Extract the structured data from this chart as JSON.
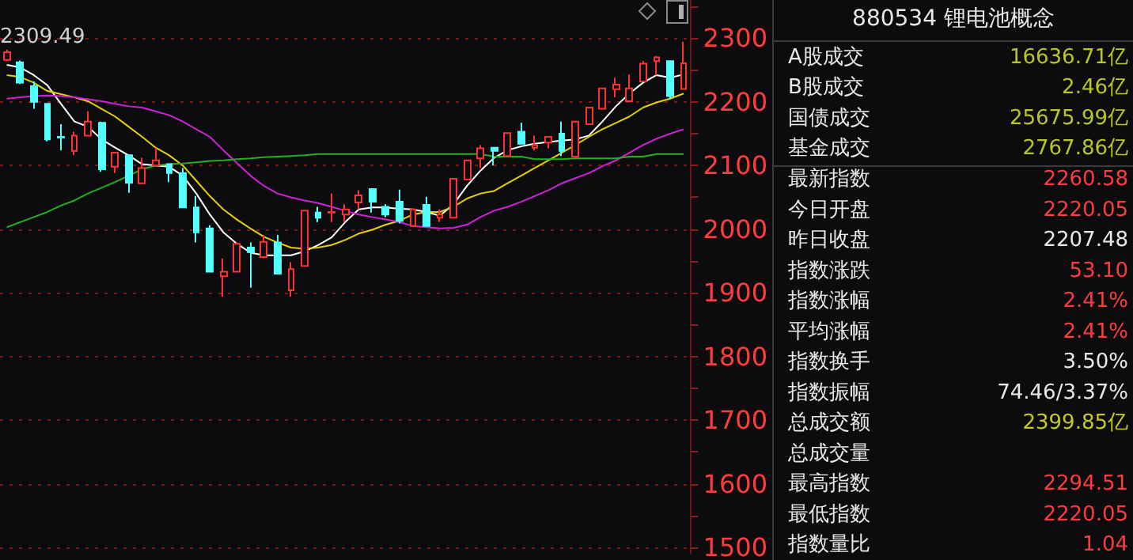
{
  "chart_data": [
    {
      "type": "candlestick",
      "categories": [
        null,
        null,
        null,
        null,
        null,
        null,
        null,
        null,
        null,
        null,
        null,
        null,
        null,
        null,
        null,
        null,
        null,
        null,
        null,
        null,
        null,
        null,
        null,
        null,
        null,
        null,
        null,
        null,
        null,
        null,
        null,
        null,
        null,
        null,
        null,
        null,
        null,
        null,
        null,
        null,
        null,
        null,
        null,
        null,
        null,
        null,
        null,
        null,
        null,
        null,
        null
      ],
      "ohlc": [
        [
          2266,
          2282,
          2264,
          2278
        ],
        [
          2262,
          2265,
          2228,
          2230
        ],
        [
          2225,
          2232,
          2189,
          2200
        ],
        [
          2197,
          2198,
          2138,
          2141
        ],
        [
          2145,
          2165,
          2124,
          2144
        ],
        [
          2123,
          2153,
          2116,
          2147
        ],
        [
          2147,
          2185,
          2147,
          2169
        ],
        [
          2167,
          2169,
          2090,
          2094
        ],
        [
          2098,
          2120,
          2088,
          2120
        ],
        [
          2116,
          2116,
          2057,
          2073
        ],
        [
          2072,
          2112,
          2072,
          2096
        ],
        [
          2100,
          2128,
          2100,
          2108
        ],
        [
          2102,
          2102,
          2074,
          2088
        ],
        [
          2088,
          2096,
          2034,
          2034
        ],
        [
          2034,
          2052,
          1979,
          1995
        ],
        [
          2001,
          2006,
          1932,
          1933
        ],
        [
          1926,
          1954,
          1894,
          1933
        ],
        [
          1933,
          1979,
          1933,
          1977
        ],
        [
          1971,
          1979,
          1908,
          1964
        ],
        [
          1956,
          1991,
          1954,
          1980
        ],
        [
          1979,
          1991,
          1930,
          1930
        ],
        [
          1904,
          1948,
          1894,
          1937
        ],
        [
          1942,
          2029,
          1942,
          2029
        ],
        [
          2026,
          2035,
          2011,
          2018
        ],
        [
          2026,
          2056,
          2011,
          2027
        ],
        [
          2023,
          2039,
          2011,
          2031
        ],
        [
          2042,
          2061,
          2031,
          2053
        ],
        [
          2063,
          2063,
          2026,
          2043
        ],
        [
          2035,
          2039,
          2019,
          2023
        ],
        [
          2043,
          2062,
          2009,
          2013
        ],
        [
          2005,
          2031,
          2005,
          2031
        ],
        [
          2038,
          2051,
          2005,
          2005
        ],
        [
          2018,
          2031,
          2011,
          2023
        ],
        [
          2018,
          2079,
          2018,
          2079
        ],
        [
          2078,
          2108,
          2078,
          2108
        ],
        [
          2111,
          2132,
          2096,
          2127
        ],
        [
          2128,
          2128,
          2100,
          2123
        ],
        [
          2115,
          2151,
          2115,
          2151
        ],
        [
          2153,
          2167,
          2134,
          2134
        ],
        [
          2128,
          2147,
          2124,
          2132
        ],
        [
          2136,
          2145,
          2127,
          2145
        ],
        [
          2150,
          2169,
          2115,
          2123
        ],
        [
          2114,
          2169,
          2114,
          2169
        ],
        [
          2165,
          2191,
          2165,
          2191
        ],
        [
          2189,
          2221,
          2189,
          2221
        ],
        [
          2220,
          2238,
          2207,
          2227
        ],
        [
          2201,
          2243,
          2201,
          2221
        ],
        [
          2232,
          2264,
          2232,
          2260
        ],
        [
          2264,
          2272,
          2242,
          2270
        ],
        [
          2264,
          2264,
          2205,
          2209
        ],
        [
          2220.05,
          2294.51,
          2220.05,
          2260.58
        ]
      ],
      "colors": [
        "#ff3232",
        "#54ffff",
        "#54ffff",
        "#54ffff",
        "#54ffff",
        "#ff3232",
        "#ff3232",
        "#54ffff",
        "#ff3232",
        "#54ffff",
        "#ff3232",
        "#ff3232",
        "#54ffff",
        "#54ffff",
        "#54ffff",
        "#54ffff",
        "#ff3232",
        "#ff3232",
        "#54ffff",
        "#ff3232",
        "#54ffff",
        "#ff3232",
        "#ff3232",
        "#54ffff",
        "#ff3232",
        "#ff3232",
        "#ff3232",
        "#54ffff",
        "#54ffff",
        "#54ffff",
        "#ff3232",
        "#54ffff",
        "#ff3232",
        "#ff3232",
        "#ff3232",
        "#ff3232",
        "#54ffff",
        "#ff3232",
        "#54ffff",
        "#ff3232",
        "#ff3232",
        "#54ffff",
        "#ff3232",
        "#ff3232",
        "#ff3232",
        "#ff3232",
        "#ff3232",
        "#ff3232",
        "#ff3232",
        "#54ffff",
        "#ff3232"
      ],
      "series": [
        {
          "type": "line",
          "color": "#ffffff",
          "values": [
            2258,
            2254,
            2242,
            2226,
            2197,
            2169,
            2161,
            2141,
            2128,
            2116,
            2102,
            2100,
            2098,
            2084,
            2056,
            2023,
            1995,
            1977,
            1963,
            1959,
            1959,
            1959,
            1965,
            1975,
            1987,
            2011,
            2031,
            2034,
            2034,
            2032,
            2031,
            2027,
            2021,
            2039,
            2068,
            2092,
            2112,
            2124,
            2130,
            2134,
            2137,
            2139,
            2141,
            2147,
            2169,
            2193,
            2213,
            2230,
            2242,
            2238,
            2243
          ]
        },
        {
          "type": "line",
          "color": "#e8d000",
          "values": [
            2242,
            2239,
            2230,
            2217,
            2212,
            2207,
            2201,
            2189,
            2177,
            2161,
            2145,
            2128,
            2116,
            2100,
            2076,
            2052,
            2031,
            2015,
            2001,
            1988,
            1979,
            1971,
            1969,
            1971,
            1975,
            1983,
            1993,
            1999,
            2007,
            2013,
            2023,
            2027,
            2027,
            2035,
            2048,
            2056,
            2060,
            2072,
            2084,
            2096,
            2108,
            2120,
            2132,
            2145,
            2157,
            2167,
            2177,
            2191,
            2199,
            2205,
            2213
          ]
        },
        {
          "type": "line",
          "color": "#d020d8",
          "values": [
            2205,
            2207,
            2209,
            2210,
            2209,
            2207,
            2204,
            2201,
            2197,
            2193,
            2191,
            2185,
            2179,
            2169,
            2157,
            2145,
            2124,
            2104,
            2084,
            2068,
            2056,
            2050,
            2045,
            2041,
            2035,
            2029,
            2023,
            2019,
            2015,
            2011,
            2005,
            2003,
            2001,
            2002,
            2007,
            2019,
            2029,
            2035,
            2043,
            2052,
            2061,
            2072,
            2080,
            2088,
            2099,
            2108,
            2120,
            2132,
            2142,
            2150,
            2157
          ]
        },
        {
          "type": "line",
          "color": "#20b020",
          "values": [
            2003,
            2011,
            2019,
            2027,
            2037,
            2045,
            2056,
            2065,
            2074,
            2084,
            2094,
            2100,
            2102,
            2103,
            2105,
            2107,
            2108,
            2110,
            2111,
            2113,
            2114,
            2115,
            2116,
            2118,
            2118,
            2118,
            2118,
            2118,
            2118,
            2118,
            2118,
            2118,
            2118,
            2118,
            2118,
            2118,
            2114,
            2114,
            2114,
            2110,
            2110,
            2110,
            2111,
            2111,
            2111,
            2111,
            2114,
            2114,
            2118,
            2118,
            2118
          ]
        }
      ],
      "ylim": [
        1490,
        2360
      ],
      "yticks": [
        1500,
        {
          "value": 1550,
          "label": null
        },
        1600,
        {
          "value": 1650,
          "label": null
        },
        1700,
        {
          "value": 1750,
          "label": null
        },
        1800,
        {
          "value": 1850,
          "label": null
        },
        1900,
        {
          "value": 1950,
          "label": null
        },
        2000,
        {
          "value": 2050,
          "label": null
        },
        2100,
        {
          "value": 2150,
          "label": null
        },
        2200,
        {
          "value": 2250,
          "label": null
        },
        2300,
        {
          "value": 2350,
          "label": null
        }
      ],
      "grid": "y",
      "tick_labels": "y",
      "annotations": [
        "2309.49"
      ]
    },
    {
      "type": "other",
      "title": "880534 锂电池概念",
      "categories": [
        "A股成交",
        "B股成交",
        "国债成交",
        "基金成交",
        "最新指数",
        "今日开盘",
        "昨日收盘",
        "指数涨跌",
        "指数涨幅",
        "平均涨幅",
        "指数换手",
        "指数振幅",
        "总成交额",
        "总成交量",
        "最高指数",
        "最低指数",
        "指数量比"
      ],
      "value_labels": [
        "16636.71亿",
        "2.46亿",
        "25675.99亿",
        "2767.86亿",
        "2260.58",
        "2220.05",
        "2207.48",
        "53.10",
        "2.41%",
        "2.41%",
        "3.50%",
        "74.46/3.37%",
        "2399.85亿",
        null,
        "2294.51",
        "2220.05",
        "1.04"
      ],
      "colors": [
        "#b8c820",
        "#b8c820",
        "#b8c820",
        "#b8c820",
        "#ff3c3c",
        "#ff3c3c",
        "#e8e8e8",
        "#ff3c3c",
        "#ff3c3c",
        "#ff3c3c",
        "#e8e8e8",
        "#e8e8e8",
        "#c8c820",
        null,
        "#ff3c3c",
        "#ff3c3c",
        "#ff3c3c"
      ]
    }
  ]
}
